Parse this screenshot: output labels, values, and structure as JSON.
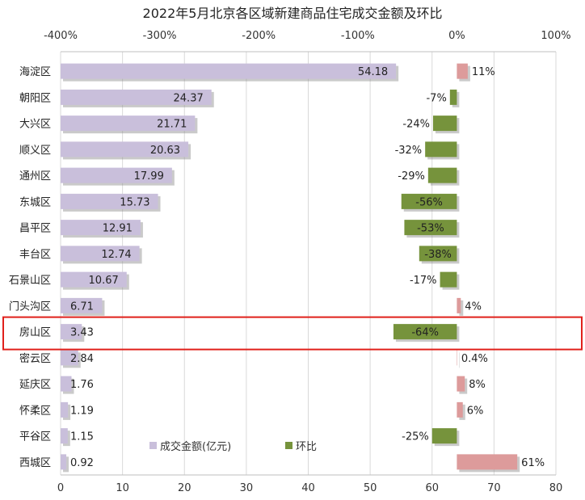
{
  "chart_data": {
    "type": "bar",
    "title": "2022年5月北京各区域新建商品住宅成交金额及环比",
    "categories": [
      "海淀区",
      "朝阳区",
      "大兴区",
      "顺义区",
      "通州区",
      "东城区",
      "昌平区",
      "丰台区",
      "石景山区",
      "门头沟区",
      "房山区",
      "密云区",
      "延庆区",
      "怀柔区",
      "平谷区",
      "西城区"
    ],
    "series": [
      {
        "name": "成交金额(亿元)",
        "axis": "bottom",
        "values": [
          54.18,
          24.37,
          21.71,
          20.63,
          17.99,
          15.73,
          12.91,
          12.74,
          10.67,
          6.71,
          3.43,
          2.84,
          1.76,
          1.19,
          1.15,
          0.92
        ],
        "labels": [
          "54.18",
          "24.37",
          "21.71",
          "20.63",
          "17.99",
          "15.73",
          "12.91",
          "12.74",
          "10.67",
          "6.71",
          "3.43",
          "2.84",
          "1.76",
          "1.19",
          "1.15",
          "0.92"
        ]
      },
      {
        "name": "环比",
        "axis": "top",
        "values": [
          11,
          -7,
          -24,
          -32,
          -29,
          -56,
          -53,
          -38,
          -17,
          4,
          -64,
          0.4,
          8,
          6,
          -25,
          61
        ],
        "labels": [
          "11%",
          "-7%",
          "-24%",
          "-32%",
          "-29%",
          "-56%",
          "-53%",
          "-38%",
          "-17%",
          "4%",
          "-64%",
          "0.4%",
          "8%",
          "6%",
          "-25%",
          "61%"
        ]
      }
    ],
    "x_bottom": {
      "range": [
        0,
        80
      ],
      "ticks": [
        "0",
        "10",
        "20",
        "30",
        "40",
        "50",
        "60",
        "70",
        "80"
      ]
    },
    "x_top": {
      "range": [
        -400,
        100
      ],
      "ticks": [
        "-400%",
        "-300%",
        "-200%",
        "-100%",
        "0%",
        "100%"
      ]
    },
    "legend_position": "bottom-center",
    "grid": true,
    "highlight_category": "房山区",
    "colors": {
      "amount": "#c9bfdb",
      "positive": "#dd9b9b",
      "negative": "#76933c",
      "highlight": "#e0201b",
      "grid": "#d9d9d9"
    }
  }
}
